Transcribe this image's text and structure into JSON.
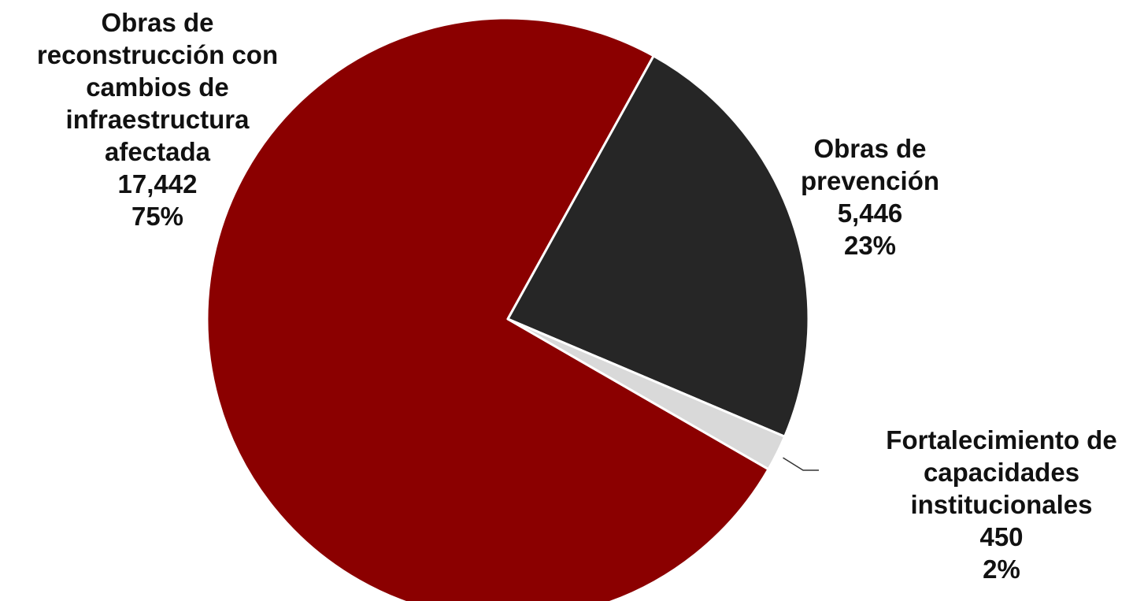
{
  "chart_data": {
    "type": "pie",
    "slices": [
      {
        "label": "Obras de reconstrucción con cambios de infraestructura afectada",
        "label_lines": [
          "Obras de",
          "reconstrucción con",
          "cambios de",
          "infraestructura",
          "afectada"
        ],
        "value": 17442,
        "value_label": "17,442",
        "percent_label": "75%",
        "color": "#8b0000"
      },
      {
        "label": "Obras de prevención",
        "label_lines": [
          "Obras de",
          "prevención"
        ],
        "value": 5446,
        "value_label": "5,446",
        "percent_label": "23%",
        "color": "#262626"
      },
      {
        "label": "Fortalecimiento de capacidades institucionales",
        "label_lines": [
          "Fortalecimiento de",
          "capacidades",
          "institucionales"
        ],
        "value": 450,
        "value_label": "450",
        "percent_label": "2%",
        "color": "#d9d9d9"
      }
    ]
  }
}
